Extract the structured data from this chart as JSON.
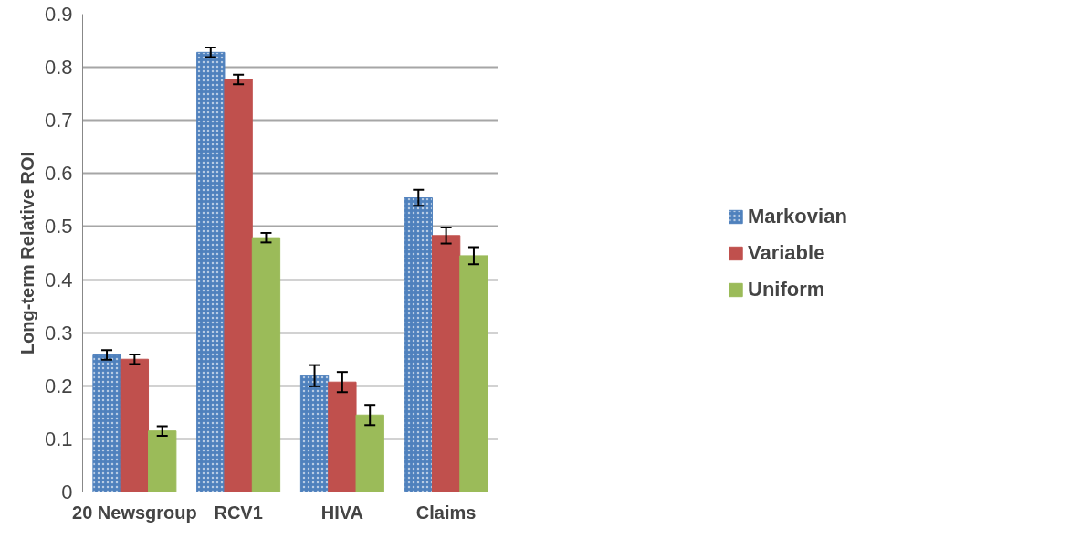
{
  "chart_data": {
    "type": "bar",
    "ylabel": "Long-term Relative ROI",
    "categories": [
      "20 Newsgroup",
      "RCV1",
      "HIVA",
      "Claims"
    ],
    "series": [
      {
        "name": "Markovian",
        "color": "#4f81bd",
        "values": [
          0.258,
          0.828,
          0.219,
          0.554
        ],
        "errors": [
          0.009,
          0.009,
          0.02,
          0.015
        ]
      },
      {
        "name": "Variable",
        "color": "#c0504d",
        "values": [
          0.25,
          0.777,
          0.207,
          0.483
        ],
        "errors": [
          0.009,
          0.009,
          0.019,
          0.015
        ]
      },
      {
        "name": "Uniform",
        "color": "#9bbb59",
        "values": [
          0.115,
          0.479,
          0.145,
          0.445
        ],
        "errors": [
          0.009,
          0.009,
          0.019,
          0.016
        ]
      }
    ],
    "ylim": [
      0,
      0.9
    ],
    "yticks": [
      0,
      0.1,
      0.2,
      0.3,
      0.4,
      0.5,
      0.6,
      0.7,
      0.8,
      0.9
    ],
    "grid": "y",
    "legend": "right"
  }
}
